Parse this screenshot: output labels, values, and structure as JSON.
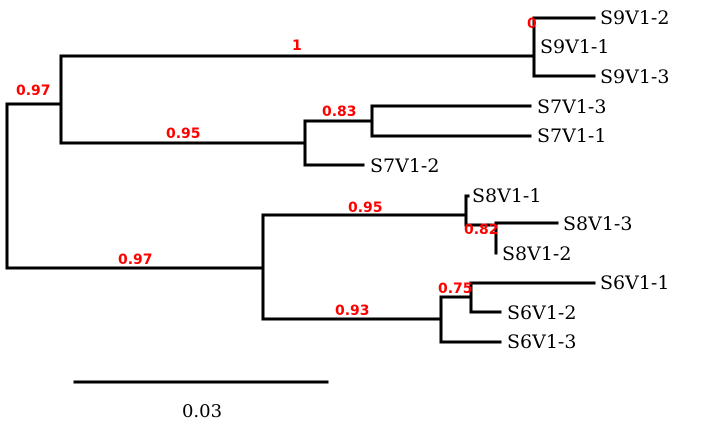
{
  "colors": {
    "branch": "#000000",
    "support": "#ff0000",
    "background": "#ffffff"
  },
  "leaves": [
    {
      "id": "S9V1-2",
      "label": "S9V1-2"
    },
    {
      "id": "S9V1-1",
      "label": "S9V1-1"
    },
    {
      "id": "S9V1-3",
      "label": "S9V1-3"
    },
    {
      "id": "S7V1-3",
      "label": "S7V1-3"
    },
    {
      "id": "S7V1-1",
      "label": "S7V1-1"
    },
    {
      "id": "S7V1-2",
      "label": "S7V1-2"
    },
    {
      "id": "S8V1-1",
      "label": "S8V1-1"
    },
    {
      "id": "S8V1-3",
      "label": "S8V1-3"
    },
    {
      "id": "S8V1-2",
      "label": "S8V1-2"
    },
    {
      "id": "S6V1-1",
      "label": "S6V1-1"
    },
    {
      "id": "S6V1-2",
      "label": "S6V1-2"
    },
    {
      "id": "S6V1-3",
      "label": "S6V1-3"
    }
  ],
  "support_values": {
    "root_upper": "0.97",
    "s9_clade": "1",
    "s9_internal": "0",
    "s7_clade": "0.95",
    "s7_inner": "0.83",
    "root_lower": "0.97",
    "s8_clade": "0.95",
    "s8_inner": "0.82",
    "s6_clade": "0.93",
    "s6_inner": "0.75"
  },
  "scale_bar": {
    "label": "0.03"
  }
}
